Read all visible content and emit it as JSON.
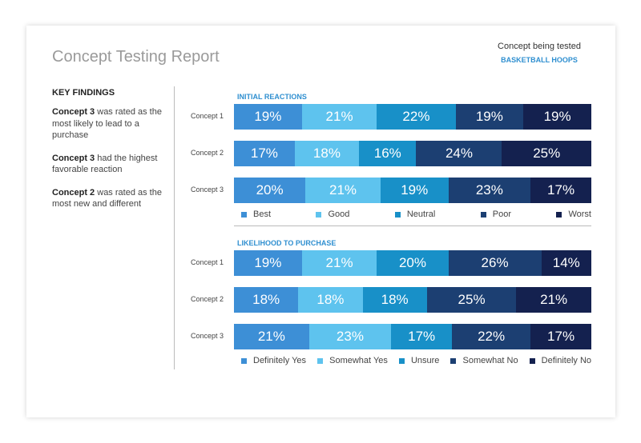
{
  "header": {
    "title": "Concept Testing Report",
    "subtitle": "Concept being tested",
    "concept": "BASKETBALL HOOPS"
  },
  "key_findings": {
    "title": "KEY FINDINGS",
    "items": [
      {
        "bold": "Concept 3",
        "text": "was rated as the most likely to lead to a purchase"
      },
      {
        "bold": "Concept 3",
        "text": "had the highest favorable reaction"
      },
      {
        "bold": "Concept 2",
        "text": "was rated as the most new and different"
      }
    ]
  },
  "chart_data": [
    {
      "type": "stacked-bar-horizontal",
      "title": "INITIAL REACTIONS",
      "categories": [
        "Concept 1",
        "Concept 2",
        "Concept 3"
      ],
      "series": [
        {
          "name": "Best",
          "color": "#3d8fd6",
          "values": [
            19,
            17,
            20
          ],
          "value_labels": [
            "19%",
            "17%",
            "20%"
          ]
        },
        {
          "name": "Good",
          "color": "#5ec3ee",
          "values": [
            21,
            18,
            21
          ],
          "value_labels": [
            "21%",
            "18%",
            "21%"
          ]
        },
        {
          "name": "Neutral",
          "color": "#1890c8",
          "values": [
            22,
            16,
            19
          ],
          "value_labels": [
            "22%",
            "16%",
            "19%"
          ]
        },
        {
          "name": "Poor",
          "color": "#1c3f72",
          "values": [
            19,
            24,
            23
          ],
          "value_labels": [
            "19%",
            "24%",
            "23%"
          ]
        },
        {
          "name": "Worst",
          "color": "#14214f",
          "values": [
            19,
            25,
            17
          ],
          "value_labels": [
            "19%",
            "25%",
            "17%"
          ]
        }
      ]
    },
    {
      "type": "stacked-bar-horizontal",
      "title": "LIKELIHOOD TO PURCHASE",
      "categories": [
        "Concept 1",
        "Concept 2",
        "Concept 3"
      ],
      "series": [
        {
          "name": "Definitely Yes",
          "color": "#3d8fd6",
          "values": [
            19,
            18,
            21
          ],
          "value_labels": [
            "19%",
            "18%",
            "21%"
          ]
        },
        {
          "name": "Somewhat Yes",
          "color": "#5ec3ee",
          "values": [
            21,
            18,
            23
          ],
          "value_labels": [
            "21%",
            "18%",
            "23%"
          ]
        },
        {
          "name": "Unsure",
          "color": "#1890c8",
          "values": [
            20,
            18,
            17
          ],
          "value_labels": [
            "20%",
            "18%",
            "17%"
          ]
        },
        {
          "name": "Somewhat No",
          "color": "#1c3f72",
          "values": [
            26,
            25,
            22
          ],
          "value_labels": [
            "26%",
            "25%",
            "22%"
          ]
        },
        {
          "name": "Definitely No",
          "color": "#14214f",
          "values": [
            14,
            21,
            17
          ],
          "value_labels": [
            "14%",
            "21%",
            "17%"
          ]
        }
      ]
    }
  ]
}
